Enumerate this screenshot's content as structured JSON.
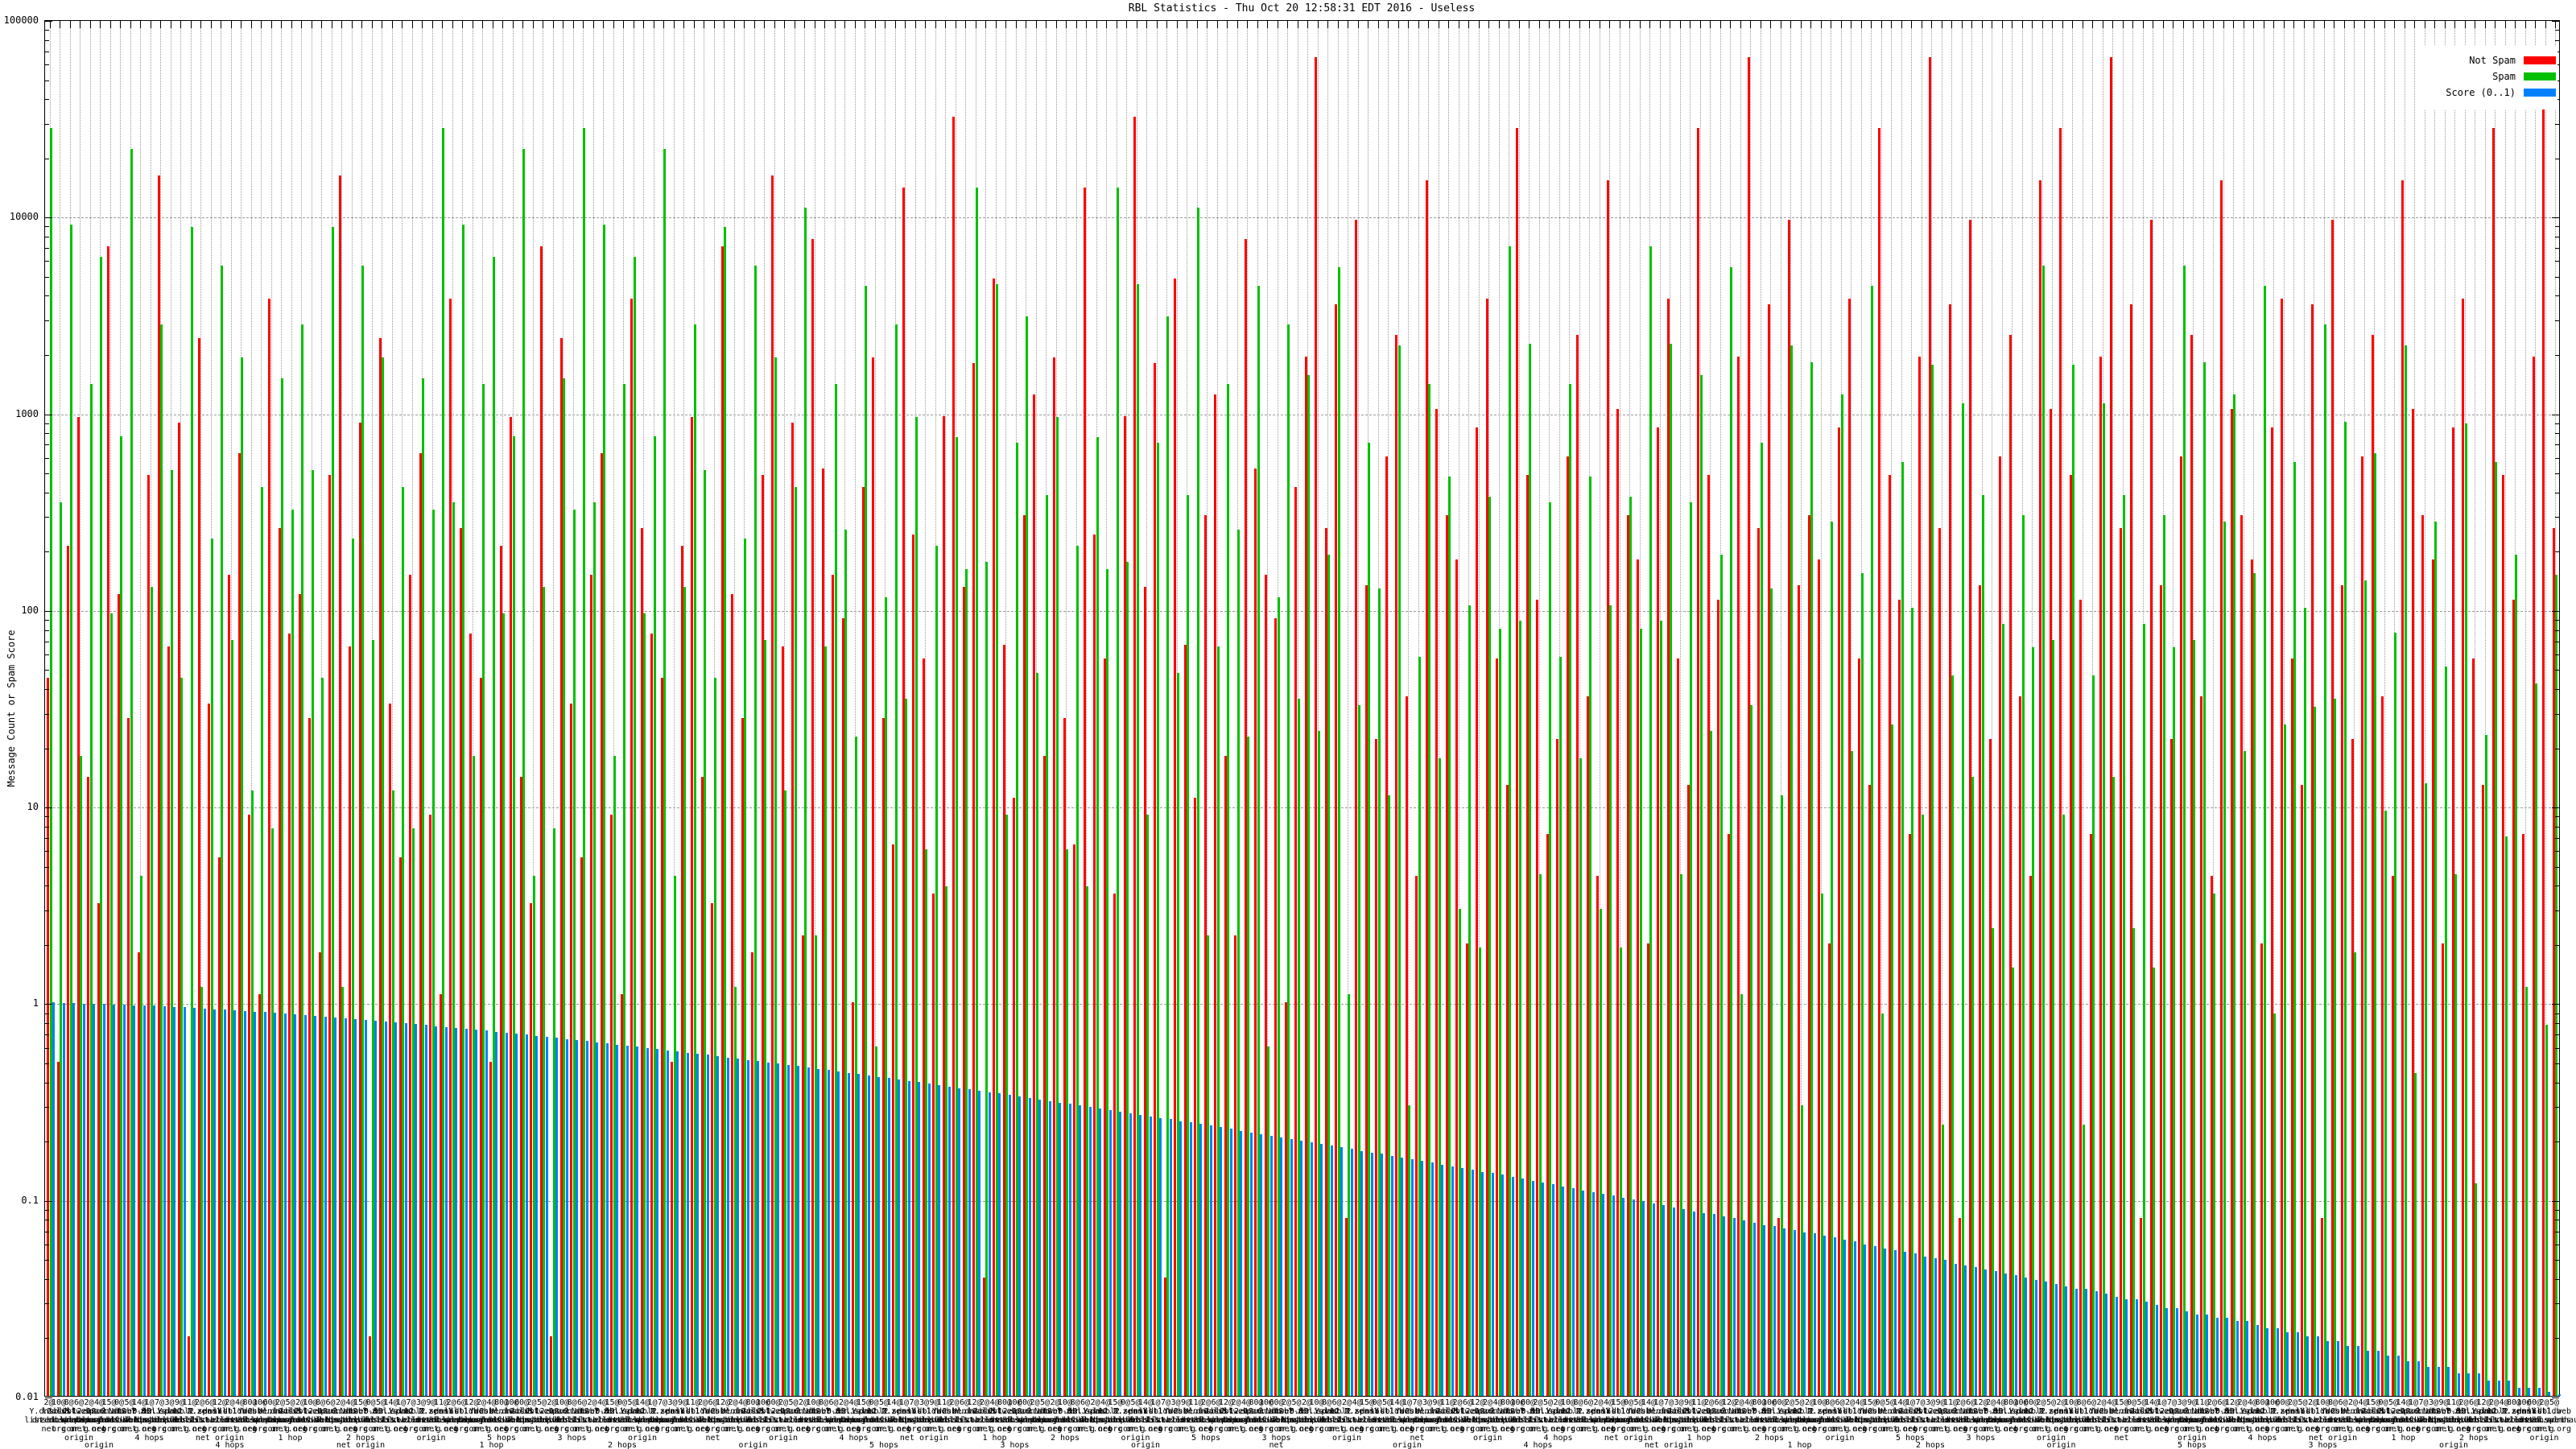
{
  "title": "RBL Statistics - Thu Oct 20 12:58:31 EDT 2016 - Useless",
  "y_axis": {
    "label": "Message Count or Spam Score",
    "scale": "log",
    "min": 0.01,
    "max": 100000,
    "ticks": [
      "100000",
      "10000",
      "1000",
      "100",
      "10",
      "1",
      "0.1",
      "0.01"
    ],
    "tick_values": [
      100000,
      10000,
      1000,
      100,
      10,
      1,
      0.1,
      0.01
    ]
  },
  "legend": {
    "position": "top-right",
    "items": [
      {
        "label": "Not Spam",
        "color": "#ff0000"
      },
      {
        "label": "Spam",
        "color": "#00c000"
      },
      {
        "label": "Score (0..1)",
        "color": "#0080ff"
      }
    ]
  },
  "chart_data": {
    "type": "bar",
    "n_groups": 250,
    "ylim": [
      0.01,
      100000
    ],
    "log_scale_y": true,
    "grid": true,
    "legend_position": "top-right",
    "xlabel": "",
    "ylabel": "Message Count or Spam Score",
    "series": [
      {
        "name": "Not Spam",
        "color": "#ff0000",
        "values": [
          45,
          0.5,
          210,
          950,
          14,
          3.2,
          7000,
          120,
          28,
          1.8,
          480,
          16000,
          65,
          890,
          0.02,
          2400,
          33,
          5.5,
          150,
          620,
          9,
          1.1,
          3800,
          260,
          75,
          120,
          28,
          1.8,
          480,
          16000,
          65,
          890,
          0.02,
          2400,
          33,
          5.5,
          150,
          620,
          9,
          1.1,
          3800,
          260,
          75,
          45,
          0.5,
          210,
          950,
          14,
          3.2,
          7000,
          0.02,
          2400,
          33,
          5.5,
          150,
          620,
          9,
          1.1,
          3800,
          260,
          75,
          45,
          0.5,
          210,
          950,
          14,
          3.2,
          7000,
          120,
          28,
          1.8,
          480,
          16000,
          65,
          890,
          2.2,
          7600,
          520,
          150,
          90,
          1,
          420,
          1900,
          28,
          6.4,
          14000,
          240,
          56,
          3.6,
          960,
          32000,
          130,
          1780,
          0.04,
          4800,
          66,
          11,
          300,
          1240,
          18,
          1900,
          28,
          6.4,
          14000,
          240,
          56,
          3.6,
          960,
          32000,
          130,
          1780,
          0.04,
          4800,
          66,
          11,
          300,
          1240,
          18,
          2.2,
          7600,
          520,
          150,
          90,
          1,
          420,
          1920,
          64000,
          260,
          3560,
          0.08,
          9600,
          132,
          22,
          600,
          2480,
          36,
          4.4,
          15200,
          1040,
          300,
          180,
          2,
          840,
          3800,
          56,
          12.8,
          28000,
          480,
          112,
          7.2,
          22,
          600,
          2480,
          36,
          4.4,
          15200,
          1040,
          300,
          180,
          2,
          840,
          3800,
          56,
          12.8,
          28000,
          480,
          112,
          7.2,
          1920,
          64000,
          260,
          3560,
          0.08,
          9600,
          132,
          300,
          180,
          2,
          840,
          3800,
          56,
          12.8,
          28000,
          480,
          112,
          7.2,
          1920,
          64000,
          260,
          3560,
          0.08,
          9600,
          132,
          22,
          600,
          2480,
          36,
          4.4,
          15200,
          1040,
          28000,
          480,
          112,
          7.2,
          1920,
          64000,
          260,
          3560,
          0.08,
          9600,
          132,
          22,
          600,
          2480,
          36,
          4.4,
          15200,
          1040,
          300,
          180,
          2,
          840,
          3800,
          56,
          12.8,
          3560,
          0.08,
          9600,
          132,
          22,
          600,
          2480,
          36,
          4.4,
          15200,
          1040,
          300,
          180,
          2,
          840,
          3800,
          56,
          12.8,
          28000,
          480,
          112,
          7.2,
          1920,
          64000,
          260
        ]
      },
      {
        "name": "Spam",
        "color": "#00c000",
        "values": [
          28000,
          350,
          9000,
          18,
          1400,
          6200,
          95,
          760,
          22000,
          4.4,
          130,
          2800,
          510,
          45,
          8800,
          1.2,
          230,
          5600,
          70,
          1900,
          12,
          420,
          7.7,
          1500,
          320,
          2800,
          510,
          45,
          8800,
          1.2,
          230,
          5600,
          70,
          1900,
          12,
          420,
          7.7,
          1500,
          320,
          28000,
          350,
          9000,
          18,
          1400,
          6200,
          95,
          760,
          22000,
          4.4,
          130,
          7.7,
          1500,
          320,
          28000,
          350,
          9000,
          18,
          1400,
          6200,
          95,
          760,
          22000,
          4.4,
          130,
          2800,
          510,
          45,
          8800,
          1.2,
          230,
          5600,
          70,
          1900,
          12,
          420,
          11000,
          2.2,
          65,
          1400,
          255,
          22.5,
          4400,
          0.6,
          115,
          2800,
          35,
          950,
          6,
          210,
          3.9,
          750,
          160,
          14000,
          175,
          4500,
          9,
          700,
          3100,
          47.5,
          380,
          950,
          6,
          210,
          3.9,
          750,
          160,
          14000,
          175,
          4500,
          9,
          700,
          3100,
          47.5,
          380,
          11000,
          2.2,
          65,
          1400,
          255,
          22.5,
          4400,
          0.6,
          115,
          2800,
          35,
          1550,
          24,
          190,
          5500,
          1.1,
          32.5,
          700,
          127.5,
          11.3,
          2200,
          0.3,
          57.5,
          1400,
          17.5,
          475,
          3,
          105,
          1.9,
          375,
          80,
          7000,
          87.5,
          2250,
          4.5,
          350,
          57.5,
          1400,
          17.5,
          475,
          3,
          105,
          1.9,
          375,
          80,
          7000,
          87.5,
          2250,
          4.5,
          350,
          1550,
          24,
          190,
          5500,
          1.1,
          32.5,
          700,
          127.5,
          11.3,
          2200,
          0.3,
          1800,
          3.6,
          280,
          1240,
          19,
          152,
          4400,
          0.88,
          26,
          560,
          102,
          9,
          1760,
          0.24,
          46,
          1120,
          14,
          380,
          2.4,
          84,
          1.5,
          300,
          64,
          5600,
          70,
          9,
          1760,
          0.24,
          46,
          1120,
          14,
          380,
          2.4,
          84,
          1.5,
          300,
          64,
          5600,
          70,
          1800,
          3.6,
          280,
          1240,
          19,
          152,
          4400,
          0.88,
          26,
          560,
          102,
          32,
          2800,
          35,
          900,
          1.8,
          140,
          620,
          9.5,
          76,
          2200,
          0.44,
          13,
          280,
          51,
          4.5,
          880,
          0.12,
          23,
          560,
          7,
          190,
          1.2,
          42,
          0.77,
          150
        ]
      },
      {
        "name": "Score (0..1)",
        "color": "#0080ff",
        "values": [
          1.0,
          0.996,
          0.993,
          0.989,
          0.986,
          0.982,
          0.978,
          0.975,
          0.971,
          0.968,
          0.964,
          0.958,
          0.951,
          0.945,
          0.938,
          0.932,
          0.926,
          0.919,
          0.913,
          0.906,
          0.9,
          0.893,
          0.885,
          0.878,
          0.87,
          0.863,
          0.855,
          0.848,
          0.84,
          0.833,
          0.825,
          0.817,
          0.809,
          0.801,
          0.793,
          0.785,
          0.776,
          0.768,
          0.76,
          0.752,
          0.744,
          0.736,
          0.727,
          0.719,
          0.711,
          0.703,
          0.694,
          0.686,
          0.678,
          0.669,
          0.661,
          0.653,
          0.645,
          0.637,
          0.629,
          0.621,
          0.612,
          0.604,
          0.596,
          0.588,
          0.58,
          0.572,
          0.565,
          0.557,
          0.549,
          0.542,
          0.534,
          0.526,
          0.519,
          0.511,
          0.503,
          0.496,
          0.489,
          0.482,
          0.475,
          0.468,
          0.46,
          0.453,
          0.446,
          0.439,
          0.432,
          0.426,
          0.419,
          0.413,
          0.406,
          0.4,
          0.394,
          0.387,
          0.381,
          0.374,
          0.368,
          0.362,
          0.356,
          0.351,
          0.345,
          0.339,
          0.333,
          0.327,
          0.322,
          0.316,
          0.31,
          0.305,
          0.3,
          0.295,
          0.29,
          0.285,
          0.279,
          0.274,
          0.269,
          0.264,
          0.259,
          0.255,
          0.25,
          0.246,
          0.241,
          0.237,
          0.232,
          0.228,
          0.223,
          0.219,
          0.214,
          0.21,
          0.206,
          0.203,
          0.199,
          0.195,
          0.191,
          0.187,
          0.184,
          0.18,
          0.176,
          0.173,
          0.17,
          0.166,
          0.163,
          0.16,
          0.157,
          0.154,
          0.15,
          0.147,
          0.144,
          0.141,
          0.138,
          0.136,
          0.133,
          0.13,
          0.127,
          0.124,
          0.122,
          0.119,
          0.116,
          0.114,
          0.111,
          0.109,
          0.107,
          0.105,
          0.102,
          0.1,
          0.098,
          0.095,
          0.093,
          0.091,
          0.089,
          0.087,
          0.085,
          0.084,
          0.082,
          0.08,
          0.078,
          0.076,
          0.074,
          0.073,
          0.071,
          0.07,
          0.068,
          0.067,
          0.065,
          0.064,
          0.062,
          0.061,
          0.059,
          0.058,
          0.056,
          0.055,
          0.054,
          0.053,
          0.051,
          0.05,
          0.049,
          0.047,
          0.046,
          0.045,
          0.044,
          0.043,
          0.042,
          0.041,
          0.04,
          0.039,
          0.038,
          0.037,
          0.036,
          0.035,
          0.035,
          0.034,
          0.033,
          0.032,
          0.031,
          0.031,
          0.03,
          0.029,
          0.028,
          0.028,
          0.027,
          0.026,
          0.026,
          0.025,
          0.025,
          0.024,
          0.024,
          0.023,
          0.022,
          0.022,
          0.021,
          0.021,
          0.02,
          0.02,
          0.019,
          0.019,
          0.018,
          0.018,
          0.017,
          0.017,
          0.016,
          0.016,
          0.015,
          0.015,
          0.014,
          0.014,
          0.014,
          0.013,
          0.013,
          0.013,
          0.012,
          0.012,
          0.012,
          0.011,
          0.011,
          0.011,
          0.0105,
          0.0102
        ]
      }
    ],
    "x_tick_label_parts": {
      "overlap": true,
      "counts": [
        "2@",
        "10@",
        "8@",
        "6@",
        "2@",
        "4@",
        "15@",
        "0@",
        "5@",
        "14@",
        "1@",
        "7@",
        "3@",
        "9@",
        "11@",
        "2@",
        "6@",
        "12@",
        "2@",
        "4@",
        "80@",
        "10@",
        "60@",
        "2@",
        "5@"
      ],
      "names": [
        "Y.dnsbl2",
        "l2.list",
        "dnswl.web",
        "dbl.zen",
        "12.12.2",
        "spam.N",
        "zen.db",
        "list2.Y",
        "dnsbl-0",
        "web.dbl",
        "0.l2.is",
        "zen.spam",
        "Y.lid",
        "dnsbl2",
        "12.2.ze",
        "N.zen",
        "spamY",
        "dnsbl-1",
        "list.db",
        "dbl.web",
        "Ydnsb",
        "2.zen",
        "bl.uw"
      ],
      "hosts": [
        "list.dnswl",
        "dnsbl.sorbs",
        "zen.spamhaus",
        "bl.spamcop",
        "dnsbl.njabl",
        "web.dnsbl",
        "spamhaus.dbl",
        "list.web",
        "dnswl.list",
        "dbl.dnsbl",
        "sorbs.dnsbl",
        "spamcop.bl",
        "njabl.dnsbl",
        "dnsbl.list",
        "web.list",
        "dnsbl.web",
        "list.zen",
        "zen.list",
        "bl.dnsbl"
      ],
      "tlds": [
        "net",
        "org",
        "com",
        "or.g",
        "net.org"
      ],
      "types": [
        "origin",
        "4 hops",
        "net origin",
        "1 hop",
        "2 hops",
        "origin",
        "5 hops",
        "3 hops",
        "origin",
        "net"
      ]
    }
  }
}
